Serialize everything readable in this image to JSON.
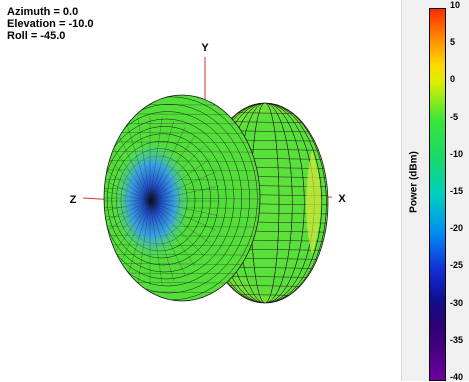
{
  "view": {
    "azimuth_text": "Azimuth = 0.0",
    "elevation_text": "Elevation = -10.0",
    "roll_text": "Roll = -45.0"
  },
  "axes": {
    "x": "X",
    "y": "Y",
    "z": "Z"
  },
  "colorbar": {
    "label": "Power  (dBm)",
    "ticks": [
      "10",
      "5",
      "0",
      "-5",
      "-10",
      "-15",
      "-20",
      "-25",
      "-30",
      "-35",
      "-40"
    ],
    "range": [
      -40,
      10
    ]
  },
  "chart_data": {
    "type": "3d-radiation-pattern",
    "view": {
      "azimuth": 0.0,
      "elevation": -10.0,
      "roll": -45.0
    },
    "color_scale": {
      "min": -40,
      "max": 10,
      "unit": "dBm"
    },
    "surface_color_range_visible": [
      -12,
      2
    ],
    "colors": {
      "surface_main": "#55e03a",
      "surface_edge_yellow": "#d8e83a",
      "null_blue": "#2a6fd8",
      "axis": "#e03030"
    }
  }
}
